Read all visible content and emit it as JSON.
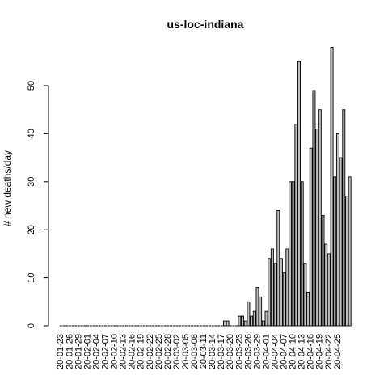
{
  "chart_data": {
    "type": "bar",
    "title": "us-loc-indiana",
    "xlabel": "",
    "ylabel": "# new deaths/day",
    "ylim": [
      0,
      58
    ],
    "yticks": [
      0,
      10,
      20,
      30,
      40,
      50
    ],
    "start_date": "2020-01-23",
    "x_tick_labels": [
      "20-01-23",
      "20-01-26",
      "20-01-29",
      "20-02-01",
      "20-02-04",
      "20-02-07",
      "20-02-10",
      "20-02-13",
      "20-02-16",
      "20-02-19",
      "20-02-22",
      "20-02-25",
      "20-02-28",
      "20-03-02",
      "20-03-05",
      "20-03-08",
      "20-03-11",
      "20-03-14",
      "20-03-17",
      "20-03-20",
      "20-03-23",
      "20-03-26",
      "20-03-29",
      "20-04-01",
      "20-04-04",
      "20-04-07",
      "20-04-10",
      "20-04-13",
      "20-04-16",
      "20-04-19",
      "20-04-22",
      "20-04-25"
    ],
    "values": [
      0,
      0,
      0,
      0,
      0,
      0,
      0,
      0,
      0,
      0,
      0,
      0,
      0,
      0,
      0,
      0,
      0,
      0,
      0,
      0,
      0,
      0,
      0,
      0,
      0,
      0,
      0,
      0,
      0,
      0,
      0,
      0,
      0,
      0,
      0,
      0,
      0,
      0,
      0,
      0,
      0,
      0,
      0,
      0,
      0,
      0,
      0,
      0,
      0,
      0,
      0,
      0,
      0,
      0,
      0,
      1,
      1,
      0,
      0,
      0,
      2,
      2,
      1,
      5,
      2,
      3,
      8,
      6,
      1,
      3,
      14,
      16,
      13,
      24,
      14,
      11,
      16,
      30,
      30,
      42,
      55,
      30,
      13,
      7,
      37,
      49,
      41,
      45,
      23,
      17,
      15,
      58,
      31,
      40,
      35,
      45,
      27,
      31
    ],
    "bar_fill": "#bebebe",
    "bar_stroke": "#000000"
  }
}
